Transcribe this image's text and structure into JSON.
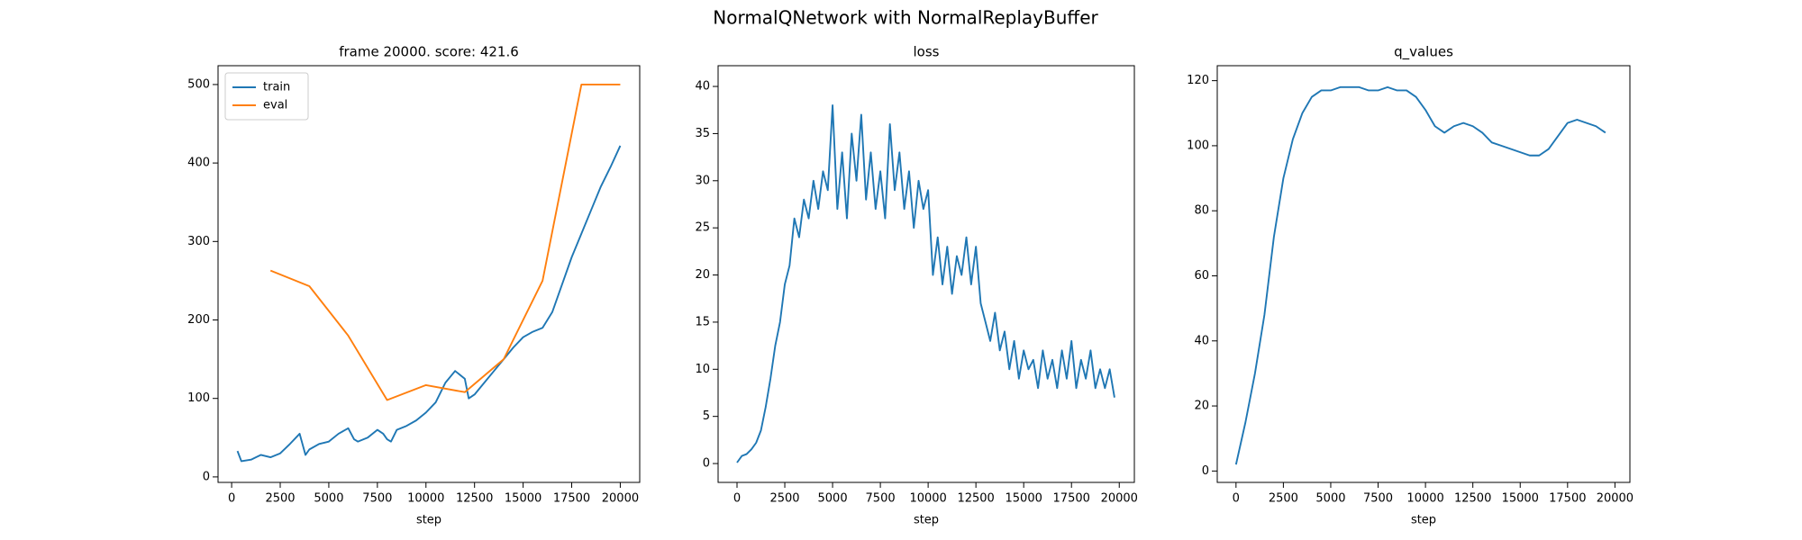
{
  "title": "NormalQNetwork with NormalReplayBuffer",
  "chart_data": [
    {
      "type": "line",
      "title": "frame 20000. score: 421.6",
      "xlabel": "step",
      "xlim": [
        -700,
        21000
      ],
      "ylim": [
        -7,
        524
      ],
      "xticks": [
        0,
        2500,
        5000,
        7500,
        10000,
        12500,
        15000,
        17500,
        20000
      ],
      "yticks": [
        0,
        100,
        200,
        300,
        400,
        500
      ],
      "legend": "upper left",
      "series": [
        {
          "name": "train",
          "color": "#1f77b4",
          "x": [
            300,
            500,
            1000,
            1500,
            2000,
            2500,
            3000,
            3500,
            3800,
            4000,
            4500,
            5000,
            5500,
            6000,
            6300,
            6500,
            7000,
            7500,
            7800,
            8000,
            8200,
            8500,
            9000,
            9500,
            10000,
            10500,
            11000,
            11500,
            12000,
            12200,
            12500,
            13000,
            13500,
            14000,
            14500,
            15000,
            15500,
            16000,
            16500,
            17000,
            17500,
            18000,
            18500,
            19000,
            19500,
            20000
          ],
          "values": [
            33,
            20,
            22,
            28,
            25,
            30,
            42,
            55,
            28,
            35,
            42,
            45,
            55,
            62,
            48,
            45,
            50,
            60,
            55,
            48,
            45,
            60,
            65,
            72,
            82,
            95,
            120,
            135,
            125,
            100,
            105,
            120,
            135,
            150,
            165,
            178,
            185,
            190,
            210,
            245,
            280,
            310,
            340,
            370,
            395,
            422
          ]
        },
        {
          "name": "eval",
          "color": "#ff7f0e",
          "x": [
            2000,
            4000,
            6000,
            8000,
            10000,
            12000,
            14000,
            16000,
            18000,
            20000
          ],
          "values": [
            263,
            243,
            180,
            98,
            117,
            108,
            150,
            250,
            500,
            500
          ]
        }
      ]
    },
    {
      "type": "line",
      "title": "loss",
      "xlabel": "step",
      "xlim": [
        -990,
        20790
      ],
      "ylim": [
        -2,
        42.2
      ],
      "xticks": [
        0,
        2500,
        5000,
        7500,
        10000,
        12500,
        15000,
        17500,
        20000
      ],
      "yticks": [
        0,
        5,
        10,
        15,
        20,
        25,
        30,
        35,
        40
      ],
      "series": [
        {
          "color": "#1f77b4",
          "x": [
            0,
            250,
            500,
            750,
            1000,
            1250,
            1500,
            1750,
            2000,
            2250,
            2500,
            2750,
            3000,
            3250,
            3500,
            3750,
            4000,
            4250,
            4500,
            4750,
            5000,
            5250,
            5500,
            5750,
            6000,
            6250,
            6500,
            6750,
            7000,
            7250,
            7500,
            7750,
            8000,
            8250,
            8500,
            8750,
            9000,
            9250,
            9500,
            9750,
            10000,
            10250,
            10500,
            10750,
            11000,
            11250,
            11500,
            11750,
            12000,
            12250,
            12500,
            12750,
            13000,
            13250,
            13500,
            13750,
            14000,
            14250,
            14500,
            14750,
            15000,
            15250,
            15500,
            15750,
            16000,
            16250,
            16500,
            16750,
            17000,
            17250,
            17500,
            17750,
            18000,
            18250,
            18500,
            18750,
            19000,
            19250,
            19500,
            19750
          ],
          "values": [
            0.1,
            0.8,
            1.0,
            1.5,
            2.2,
            3.5,
            6,
            9,
            12.5,
            15,
            19,
            21,
            26,
            24,
            28,
            26,
            30,
            27,
            31,
            29,
            38,
            27,
            33,
            26,
            35,
            30,
            37,
            28,
            33,
            27,
            31,
            26,
            36,
            29,
            33,
            27,
            31,
            25,
            30,
            27,
            29,
            20,
            24,
            19,
            23,
            18,
            22,
            20,
            24,
            19,
            23,
            17,
            15,
            13,
            16,
            12,
            14,
            10,
            13,
            9,
            12,
            10,
            11,
            8,
            12,
            9,
            11,
            8,
            12,
            9,
            13,
            8,
            11,
            9,
            12,
            8,
            10,
            8,
            10,
            7
          ]
        }
      ]
    },
    {
      "type": "line",
      "title": "q_values",
      "xlabel": "step",
      "xlim": [
        -990,
        20790
      ],
      "ylim": [
        -3.5,
        124.6
      ],
      "xticks": [
        0,
        2500,
        5000,
        7500,
        10000,
        12500,
        15000,
        17500,
        20000
      ],
      "yticks": [
        0,
        20,
        40,
        60,
        80,
        100,
        120
      ],
      "series": [
        {
          "color": "#1f77b4",
          "x": [
            0,
            500,
            1000,
            1500,
            2000,
            2500,
            3000,
            3500,
            4000,
            4500,
            5000,
            5500,
            6000,
            6500,
            7000,
            7500,
            8000,
            8500,
            9000,
            9500,
            10000,
            10500,
            11000,
            11500,
            12000,
            12500,
            13000,
            13500,
            14000,
            14500,
            15000,
            15500,
            16000,
            16500,
            17000,
            17500,
            18000,
            18500,
            19000,
            19500
          ],
          "values": [
            2,
            15,
            30,
            48,
            72,
            90,
            102,
            110,
            115,
            117,
            117,
            118,
            118,
            118,
            117,
            117,
            118,
            117,
            117,
            115,
            111,
            106,
            104,
            106,
            107,
            106,
            104,
            101,
            100,
            99,
            98,
            97,
            97,
            99,
            103,
            107,
            108,
            107,
            106,
            104
          ]
        }
      ]
    }
  ]
}
